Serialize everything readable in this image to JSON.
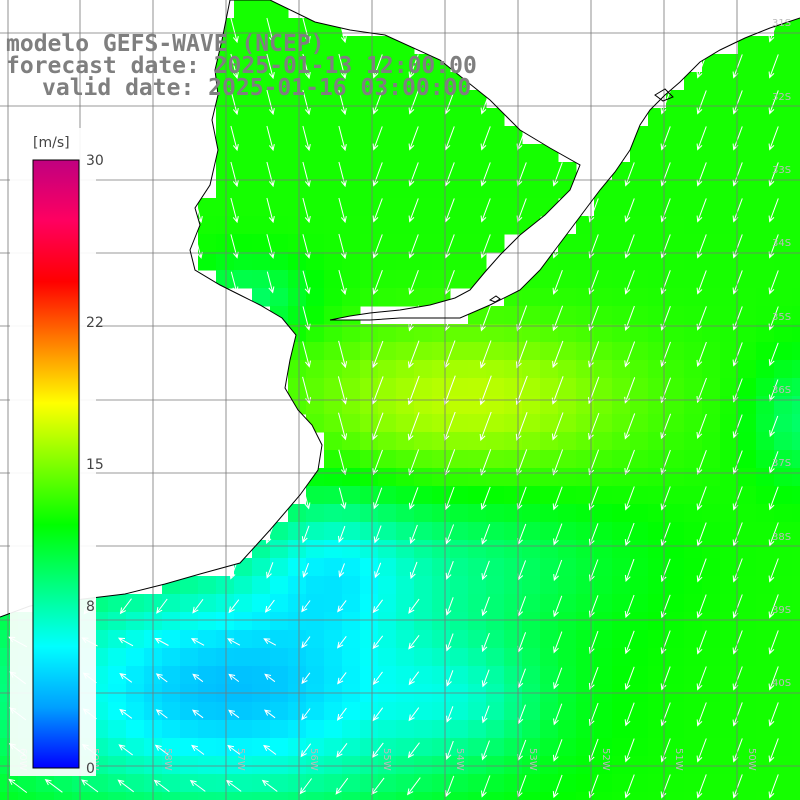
{
  "title": {
    "model": "modelo GEFS-WAVE (NCEP)",
    "forecast": "forecast date: 2025-01-13 12:00:00",
    "valid": "valid date: 2025-01-16 03:00:00"
  },
  "colorbar": {
    "unit": "[m/s]",
    "range": [
      0,
      30
    ],
    "ticks": [
      "30",
      "22",
      "15",
      "8",
      "0"
    ],
    "tick_values": [
      30,
      22,
      15,
      8,
      0
    ],
    "colors": [
      "#0000ff",
      "#00a0ff",
      "#00ffff",
      "#00ff80",
      "#00ff00",
      "#80ff00",
      "#ffff00",
      "#ff8000",
      "#ff0000",
      "#ff0060",
      "#c00080"
    ]
  },
  "map": {
    "field": "wind speed",
    "lat_labels": [
      "31S",
      "32S",
      "33S",
      "34S",
      "35S",
      "36S",
      "37S",
      "38S",
      "39S",
      "40S"
    ],
    "lon_labels": [
      "60W",
      "59W",
      "58W",
      "57W",
      "56W",
      "55W",
      "54W",
      "53W",
      "52W",
      "51W",
      "50W"
    ],
    "colors": {
      "grid": "#777777",
      "coast": "#000000",
      "land": "#ffffff",
      "arrow": "#ffffff",
      "label": "#bbbbbb",
      "title": "#7f7f7f"
    }
  }
}
